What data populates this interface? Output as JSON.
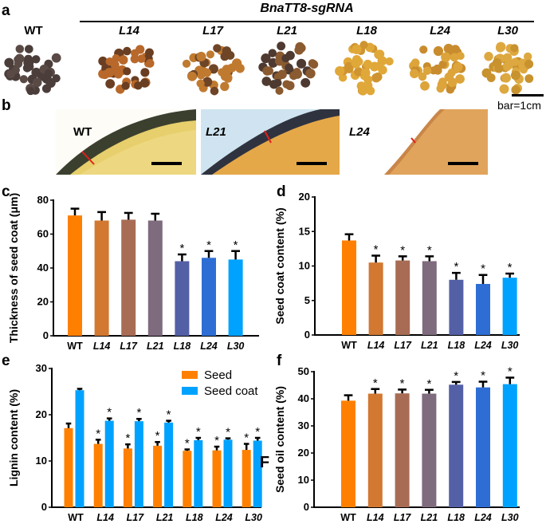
{
  "groups": [
    "WT",
    "L14",
    "L17",
    "L21",
    "L18",
    "L24",
    "L30"
  ],
  "group_colors": {
    "WT": "#FF8000",
    "L14": "#D27830",
    "L17": "#A86C55",
    "L21": "#7F6B7E",
    "L18": "#5460A6",
    "L24": "#2E6ED4",
    "L30": "#00A2FF"
  },
  "panel_a": {
    "label": "a",
    "header": "BnaTT8-sgRNA",
    "seed_groups": [
      {
        "name": "WT",
        "seed_color": "#4a3d3a",
        "seed_alt": "#5a4a45"
      },
      {
        "name": "L14",
        "seed_color": "#b8682a",
        "seed_alt": "#6a3e22"
      },
      {
        "name": "L17",
        "seed_color": "#c07a30",
        "seed_alt": "#6e4526"
      },
      {
        "name": "L21",
        "seed_color": "#8a5a30",
        "seed_alt": "#4e3a30"
      },
      {
        "name": "L18",
        "seed_color": "#e0a838",
        "seed_alt": "#cf9430"
      },
      {
        "name": "L24",
        "seed_color": "#dca43a",
        "seed_alt": "#c88c2e"
      },
      {
        "name": "L30",
        "seed_color": "#dda840",
        "seed_alt": "#c8922e"
      }
    ],
    "scale_bar": "bar=1cm"
  },
  "panel_b": {
    "label": "b",
    "images": [
      {
        "name": "WT"
      },
      {
        "name": "L21"
      },
      {
        "name": "L24"
      }
    ]
  },
  "chart_data": [
    {
      "panel": "c",
      "type": "bar",
      "title": "",
      "xlabel": "",
      "ylabel": "Thickness of seed coat (μm)",
      "categories": [
        "WT",
        "L14",
        "L17",
        "L21",
        "L18",
        "L24",
        "L30"
      ],
      "values": [
        71,
        68,
        68.5,
        68,
        44,
        46,
        45
      ],
      "errors": [
        4,
        5,
        4,
        4,
        4,
        4,
        5
      ],
      "significant": [
        false,
        false,
        false,
        false,
        true,
        true,
        true
      ],
      "ylim": [
        0,
        80
      ],
      "yticks": [
        0,
        20,
        40,
        60,
        80
      ],
      "grid": false
    },
    {
      "panel": "d",
      "type": "bar",
      "title": "",
      "xlabel": "",
      "ylabel": "Seed coat content (%)",
      "categories": [
        "WT",
        "L14",
        "L17",
        "L21",
        "L18",
        "L24",
        "L30"
      ],
      "values": [
        13.7,
        10.5,
        10.8,
        10.7,
        8.0,
        7.4,
        8.3
      ],
      "errors": [
        0.9,
        1.0,
        0.6,
        0.7,
        1.0,
        1.3,
        0.6
      ],
      "significant": [
        false,
        true,
        true,
        true,
        true,
        true,
        true
      ],
      "ylim": [
        0,
        20
      ],
      "yticks": [
        0,
        5,
        10,
        15,
        20
      ],
      "grid": false
    },
    {
      "panel": "e",
      "type": "bar",
      "title": "",
      "xlabel": "",
      "ylabel": "Lignin content (%)",
      "categories": [
        "WT",
        "L14",
        "L17",
        "L21",
        "L18",
        "L24",
        "L30"
      ],
      "series": [
        {
          "name": "Seed",
          "color": "#FF8000",
          "values": [
            17.1,
            13.7,
            12.7,
            13.3,
            12.2,
            12.3,
            12.4
          ],
          "errors": [
            1.0,
            0.9,
            0.9,
            0.8,
            0.3,
            0.8,
            1.3
          ],
          "significant": [
            false,
            true,
            true,
            true,
            true,
            true,
            true
          ]
        },
        {
          "name": "Seed coat",
          "color": "#00A2FF",
          "values": [
            25.3,
            18.7,
            18.6,
            18.3,
            14.5,
            14.6,
            14.4
          ],
          "errors": [
            0.3,
            0.5,
            0.5,
            0.4,
            0.5,
            0.3,
            0.6
          ],
          "significant": [
            false,
            true,
            true,
            true,
            true,
            true,
            true
          ]
        }
      ],
      "legend_position": "top-right",
      "annotation": "F",
      "ylim": [
        0,
        30
      ],
      "yticks": [
        0,
        10,
        20,
        30
      ],
      "grid": false
    },
    {
      "panel": "f",
      "type": "bar",
      "title": "",
      "xlabel": "",
      "ylabel": "Seed oil content (%)",
      "categories": [
        "WT",
        "L14",
        "L17",
        "L21",
        "L18",
        "L24",
        "L30"
      ],
      "values": [
        39.3,
        41.9,
        42.0,
        41.9,
        45.2,
        44.2,
        45.4
      ],
      "errors": [
        2.0,
        1.7,
        1.4,
        1.4,
        1.0,
        2.1,
        2.4
      ],
      "significant": [
        false,
        true,
        true,
        true,
        true,
        true,
        true
      ],
      "ylim": [
        0,
        50
      ],
      "yticks": [
        0,
        10,
        20,
        30,
        40,
        50
      ],
      "grid": false
    }
  ]
}
